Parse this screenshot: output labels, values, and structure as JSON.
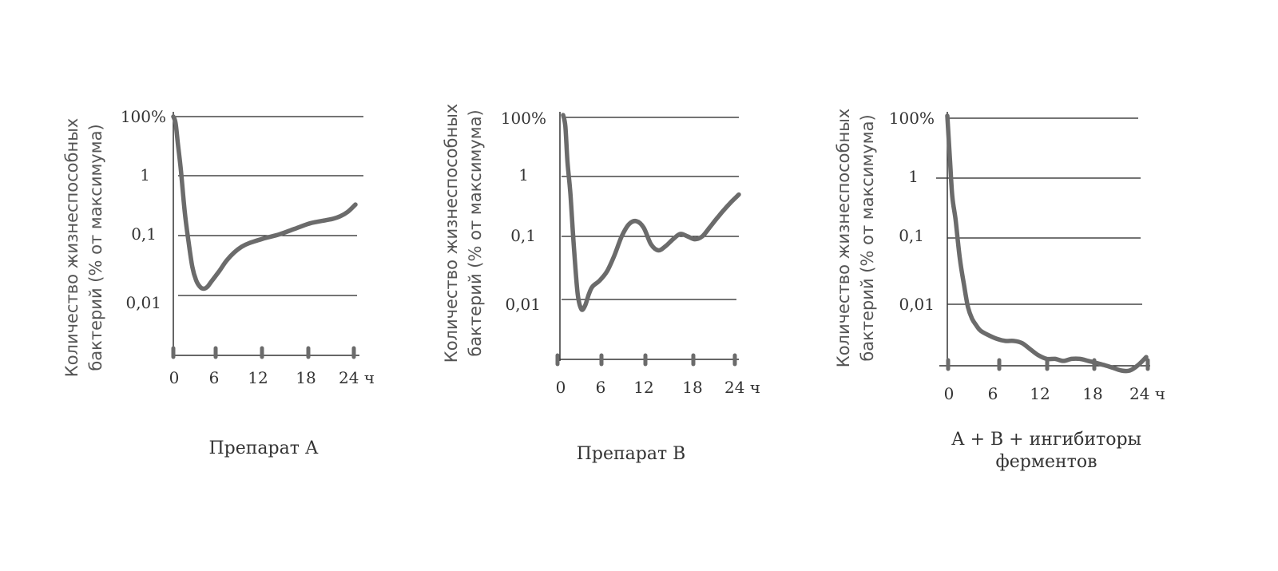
{
  "colors": {
    "curve": "#6b6b6b",
    "axis": "#333333",
    "grid": "#222222",
    "text": "#333333"
  },
  "ylabel_line1": "Количество жизнеспособных",
  "ylabel_line2": "бактерий (% от максимума)",
  "chart_data": [
    {
      "type": "line",
      "title": "Препарат А",
      "xlabel": "",
      "ylabel": "Количество жизнеспособных бактерий (% от максимума)",
      "x_ticks": [
        "0",
        "6",
        "12",
        "18",
        "24 ч"
      ],
      "y_ticks": [
        "100%",
        "1",
        "0,1",
        "0,01"
      ],
      "xlim": [
        0,
        24
      ],
      "y_scale": "log",
      "grid": "horizontal",
      "series": [
        {
          "x": [
            0,
            0.3,
            0.6,
            1,
            1.5,
            2,
            2.5,
            3,
            3.5,
            4,
            4.5,
            5,
            6,
            7,
            8,
            9,
            10,
            12,
            14,
            16,
            18,
            20,
            21,
            22,
            23,
            24
          ],
          "y": [
            100,
            60,
            12,
            1.5,
            0.25,
            0.08,
            0.03,
            0.018,
            0.014,
            0.013,
            0.014,
            0.017,
            0.025,
            0.038,
            0.052,
            0.065,
            0.075,
            0.09,
            0.105,
            0.13,
            0.16,
            0.18,
            0.19,
            0.21,
            0.25,
            0.33
          ]
        }
      ]
    },
    {
      "type": "line",
      "title": "Препарат В",
      "xlabel": "",
      "ylabel": "Количество жизнеспособных бактерий (% от максимума)",
      "x_ticks": [
        "0",
        "6",
        "12",
        "18",
        "24 ч"
      ],
      "y_ticks": [
        "100%",
        "1",
        "0,1",
        "0,01"
      ],
      "xlim": [
        0,
        24
      ],
      "y_scale": "log",
      "grid": "horizontal",
      "series": [
        {
          "x": [
            0,
            0.3,
            0.6,
            1,
            1.5,
            2,
            2.5,
            3,
            3.5,
            4,
            5,
            6,
            7,
            8,
            9,
            10,
            11,
            12,
            13,
            14,
            15,
            16,
            17,
            18,
            19,
            20,
            21,
            22,
            23,
            24
          ],
          "y": [
            120,
            50,
            3,
            0.5,
            0.06,
            0.012,
            0.007,
            0.008,
            0.012,
            0.016,
            0.02,
            0.028,
            0.05,
            0.1,
            0.16,
            0.18,
            0.14,
            0.075,
            0.06,
            0.07,
            0.09,
            0.11,
            0.1,
            0.09,
            0.1,
            0.14,
            0.2,
            0.28,
            0.38,
            0.5
          ]
        }
      ]
    },
    {
      "type": "line",
      "title": "А + В + ингибиторы ферментов",
      "xlabel": "",
      "ylabel": "Количество жизнеспособных бактерий (% от максимума)",
      "x_ticks": [
        "0",
        "6",
        "12",
        "18",
        "24 ч"
      ],
      "y_ticks": [
        "100%",
        "1",
        "0,1",
        "0,01"
      ],
      "xlim": [
        0,
        24
      ],
      "y_scale": "log",
      "grid": "horizontal",
      "series": [
        {
          "x": [
            0,
            0.3,
            0.6,
            1,
            1.5,
            2,
            2.5,
            3,
            3.5,
            4,
            5,
            6,
            7,
            8,
            9,
            10,
            11,
            12,
            13,
            14,
            15,
            16,
            17,
            18,
            19,
            20,
            21,
            22,
            23,
            24
          ],
          "y": [
            120,
            5,
            0.5,
            0.2,
            0.05,
            0.02,
            0.009,
            0.006,
            0.0048,
            0.004,
            0.0034,
            0.003,
            0.0028,
            0.0028,
            0.0026,
            0.0021,
            0.0017,
            0.0015,
            0.0015,
            0.0014,
            0.0015,
            0.0015,
            0.0014,
            0.0013,
            0.0012,
            0.0011,
            0.001,
            0.001,
            0.0012,
            0.0016
          ]
        }
      ]
    }
  ]
}
